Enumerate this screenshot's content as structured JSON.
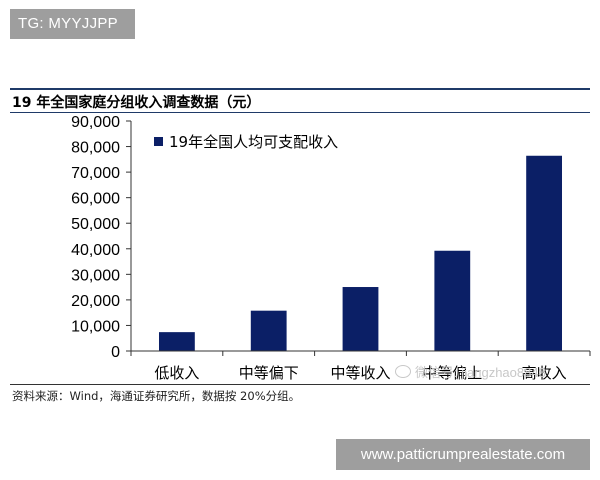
{
  "badges": {
    "top_left": "TG: MYYJJPP",
    "bottom_right": "www.patticrumprealestate.com"
  },
  "header": {
    "title": "19 年全国家庭分组收入调查数据（元）"
  },
  "footer": {
    "source": "资料来源：Wind，海通证券研究所，数据按 20%分组。"
  },
  "watermark": {
    "text": "微信号: jiangzhao8848",
    "icon": "wechat-icon"
  },
  "colors": {
    "bar": "#0b1f66",
    "rule": "#1f3a68"
  },
  "chart_data": {
    "type": "bar",
    "categories": [
      "低收入",
      "中等偏下",
      "中等收入",
      "中等偏上",
      "高收入"
    ],
    "series": [
      {
        "name": "19年全国人均可支配收入",
        "values": [
          7380,
          15777,
          25035,
          39230,
          76401
        ]
      }
    ],
    "ylim": [
      0,
      90000
    ],
    "yticks": [
      0,
      10000,
      20000,
      30000,
      40000,
      50000,
      60000,
      70000,
      80000,
      90000
    ],
    "ytick_labels": [
      "0",
      "10,000",
      "20,000",
      "30,000",
      "40,000",
      "50,000",
      "60,000",
      "70,000",
      "80,000",
      "90,000"
    ],
    "legend": "top-left",
    "grid": false
  }
}
